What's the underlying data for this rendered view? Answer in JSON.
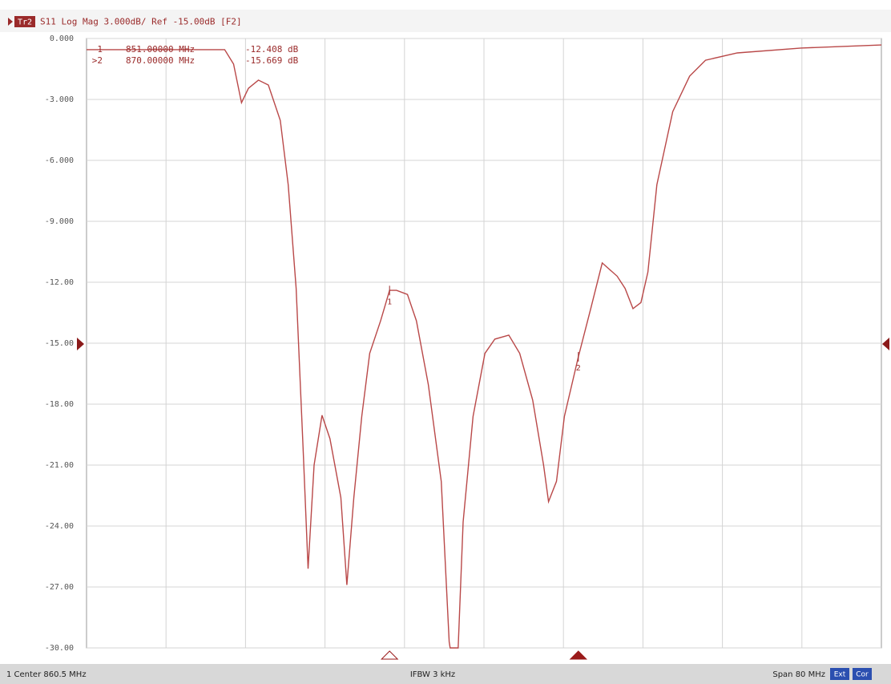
{
  "chart_data": {
    "type": "line",
    "trace_badge": "Tr2",
    "title": "S11 Log Mag 3.000dB/ Ref -15.00dB [F2]",
    "xlim": [
      820.5,
      900.5
    ],
    "ylim": [
      -30,
      0
    ],
    "yticks": [
      {
        "value": 0,
        "label": "0.000"
      },
      {
        "value": -3,
        "label": "-3.000"
      },
      {
        "value": -6,
        "label": "-6.000"
      },
      {
        "value": -9,
        "label": "-9.000"
      },
      {
        "value": -12,
        "label": "-12.00"
      },
      {
        "value": -15,
        "label": "-15.00"
      },
      {
        "value": -18,
        "label": "-18.00"
      },
      {
        "value": -21,
        "label": "-21.00"
      },
      {
        "value": -24,
        "label": "-24.00"
      },
      {
        "value": -27,
        "label": "-27.00"
      },
      {
        "value": -30,
        "label": "-30.00"
      }
    ],
    "grid": true,
    "series": [
      {
        "color": "#b94848",
        "x": [
          820.5,
          834.4,
          835.3,
          836.1,
          836.8,
          837.8,
          838.8,
          840.0,
          840.8,
          841.6,
          842.3,
          842.8,
          843.4,
          844.2,
          845.0,
          846.1,
          846.7,
          847.4,
          848.2,
          849.0,
          850.1,
          851.0,
          851.7,
          852.8,
          853.7,
          854.9,
          856.2,
          857.0,
          857.1,
          857.9,
          858.4,
          859.4,
          860.6,
          861.6,
          863.0,
          864.1,
          865.4,
          866.5,
          867.0,
          867.8,
          868.6,
          870.0,
          871.3,
          872.4,
          873.9,
          874.7,
          875.5,
          876.3,
          877.0,
          877.9,
          879.5,
          881.2,
          882.8,
          886.0,
          892.4,
          900.5
        ],
        "values": [
          -0.55,
          -0.55,
          -1.26,
          -3.16,
          -2.45,
          -2.05,
          -2.29,
          -4.03,
          -7.2,
          -12.3,
          -20.2,
          -26.1,
          -21.0,
          -18.55,
          -19.7,
          -22.6,
          -26.9,
          -22.6,
          -18.6,
          -15.5,
          -13.9,
          -12.4,
          -12.4,
          -12.6,
          -13.9,
          -17.05,
          -21.8,
          -29.7,
          -30,
          -30,
          -23.8,
          -18.6,
          -15.5,
          -14.8,
          -14.6,
          -15.5,
          -17.8,
          -21.0,
          -22.8,
          -21.8,
          -18.6,
          -15.67,
          -13.2,
          -11.05,
          -11.7,
          -12.3,
          -13.3,
          -13.0,
          -11.5,
          -7.2,
          -3.6,
          -1.85,
          -1.07,
          -0.71,
          -0.47,
          -0.32
        ]
      }
    ],
    "markers": [
      {
        "label": "1",
        "table_label": "1",
        "x": {
          "value": 851,
          "label": "851.00000 MHz"
        },
        "value": {
          "value": -12.408,
          "label": "-12.408 dB"
        },
        "active": false
      },
      {
        "label": "2",
        "table_label": ">2",
        "x": {
          "value": 870,
          "label": "870.00000 MHz"
        },
        "value": {
          "value": -15.669,
          "label": "-15.669 dB"
        },
        "active": true
      }
    ],
    "status": {
      "center": "1 Center 860.5 MHz",
      "ifbw": "IFBW 3 kHz",
      "span": "Span 80 MHz",
      "badges": [
        "Ext",
        "Cor"
      ]
    }
  }
}
